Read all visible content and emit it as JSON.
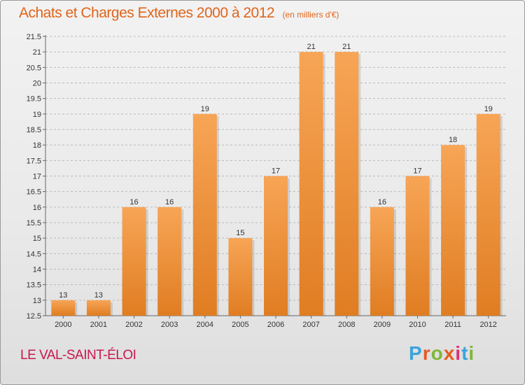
{
  "title": "Achats et Charges Externes 2000 à 2012",
  "subtitle": "(en milliers d'€)",
  "location": "LE VAL-SAINT-ÉLOI",
  "brand": {
    "text": "Proxiti",
    "letter_colors": [
      "#3aa4dc",
      "#e65b20",
      "#7fb739",
      "#e65b20",
      "#e0307a",
      "#3aa4dc",
      "#7fb739"
    ]
  },
  "colors": {
    "bar_light": "#f7a556",
    "bar_dark": "#e07d22",
    "title": "#e0651b",
    "location": "#c8184e"
  },
  "chart_data": {
    "type": "bar",
    "title": "Achats et Charges Externes 2000 à 2012",
    "subtitle": "(en milliers d'€)",
    "xlabel": "",
    "ylabel": "",
    "categories": [
      "2000",
      "2001",
      "2002",
      "2003",
      "2004",
      "2005",
      "2006",
      "2007",
      "2008",
      "2009",
      "2010",
      "2011",
      "2012"
    ],
    "values": [
      13,
      13,
      16,
      16,
      19,
      15,
      17,
      21,
      21,
      16,
      17,
      18,
      19
    ],
    "value_labels": [
      "13",
      "13",
      "16",
      "16",
      "19",
      "15",
      "17",
      "21",
      "21",
      "16",
      "17",
      "18",
      "19"
    ],
    "ylim": [
      12.5,
      21.5
    ],
    "yticks": [
      "12.5",
      "13",
      "13.5",
      "14",
      "14.5",
      "15",
      "15.5",
      "16",
      "16.5",
      "17",
      "17.5",
      "18",
      "18.5",
      "19",
      "19.5",
      "20",
      "20.5",
      "21",
      "21.5"
    ],
    "grid": "horizontal dashed"
  }
}
